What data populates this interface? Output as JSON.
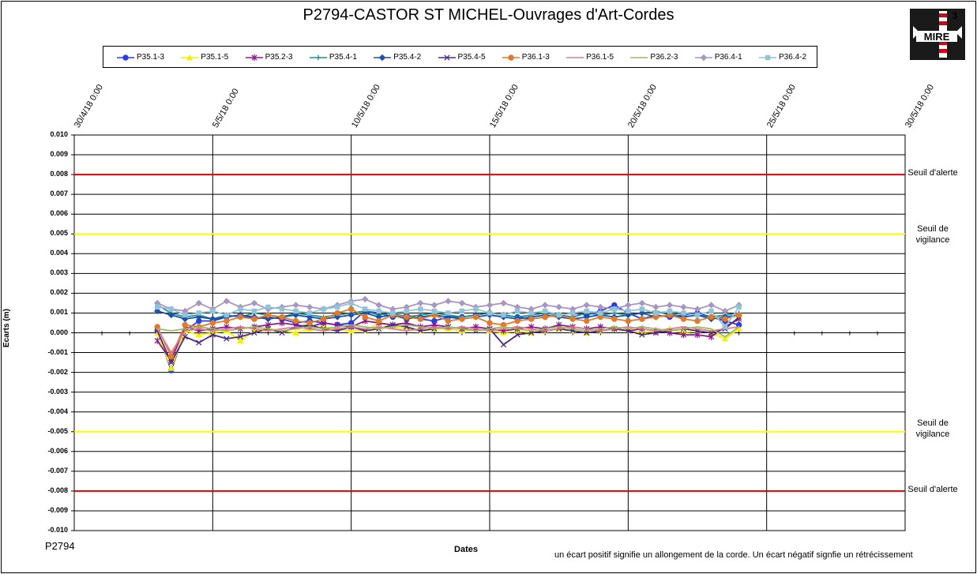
{
  "title": "P2794-CASTOR  ST MICHEL-Ouvrages  d'Art-Cordes",
  "logo": {
    "name": "mire-logo",
    "text": "MIRE",
    "digit": "3"
  },
  "footer": {
    "code": "P2794",
    "note": "un écart positif  signifie un allongement  de la corde.  Un écart négatif  signfie  un rétrécissement"
  },
  "thresholds": {
    "alert_top": "Seuil d'alerte",
    "vigilance_top": "Seuil de vigilance",
    "vigilance_bottom": "Seuil de vigilance",
    "alert_bottom": "Seuil d'alerte"
  },
  "chart_data": {
    "type": "line",
    "title": "P2794-CASTOR  ST MICHEL-Ouvrages  d'Art-Cordes",
    "xlabel": "Dates",
    "ylabel": "Ecarts (m)",
    "x_ticks": [
      "30/4/18 0:00",
      "5/5/18 0:00",
      "10/5/18 0:00",
      "15/5/18 0:00",
      "20/5/18 0:00",
      "25/5/18 0:00",
      "30/5/18 0:00"
    ],
    "xlim": [
      "2018-04-30",
      "2018-05-30"
    ],
    "ylim": [
      -0.01,
      0.01
    ],
    "y_ticks": [
      "0.010",
      "0.009",
      "0.008",
      "0.007",
      "0.006",
      "0.005",
      "0.004",
      "0.003",
      "0.002",
      "0.001",
      "0.000",
      "-0.001",
      "-0.002",
      "-0.003",
      "-0.004",
      "-0.005",
      "-0.006",
      "-0.007",
      "-0.008",
      "-0.009",
      "-0.010"
    ],
    "grid": true,
    "legend_position": "top",
    "threshold_lines": [
      {
        "value": 0.008,
        "color": "#dd0000"
      },
      {
        "value": 0.005,
        "color": "#ffff00"
      },
      {
        "value": -0.005,
        "color": "#ffff00"
      },
      {
        "value": -0.008,
        "color": "#dd0000"
      }
    ],
    "x_dates": [
      "2018-05-03",
      "2018-05-03 12:00",
      "2018-05-04",
      "2018-05-04 12:00",
      "2018-05-05",
      "2018-05-05 12:00",
      "2018-05-06",
      "2018-05-06 12:00",
      "2018-05-07",
      "2018-05-07 12:00",
      "2018-05-08",
      "2018-05-08 12:00",
      "2018-05-09",
      "2018-05-09 12:00",
      "2018-05-10",
      "2018-05-10 12:00",
      "2018-05-11",
      "2018-05-11 12:00",
      "2018-05-12",
      "2018-05-12 12:00",
      "2018-05-13",
      "2018-05-13 12:00",
      "2018-05-14",
      "2018-05-14 12:00",
      "2018-05-15",
      "2018-05-15 12:00",
      "2018-05-16",
      "2018-05-16 12:00",
      "2018-05-17",
      "2018-05-17 12:00",
      "2018-05-18",
      "2018-05-18 12:00",
      "2018-05-19",
      "2018-05-19 12:00",
      "2018-05-20",
      "2018-05-20 12:00",
      "2018-05-21",
      "2018-05-21 12:00",
      "2018-05-22",
      "2018-05-22 12:00",
      "2018-05-23",
      "2018-05-23 12:00",
      "2018-05-24"
    ],
    "series": [
      {
        "name": "P35.1-3",
        "color": "#2a3fe0",
        "marker": "circle",
        "values": [
          0.0001,
          -0.0019,
          0.0001,
          0.0006,
          0.0006,
          0.0008,
          0.0009,
          0.0007,
          0.0008,
          0.0007,
          0.0005,
          0.0006,
          0.0005,
          0.0004,
          0.0005,
          0.0011,
          0.001,
          0.0008,
          0.0009,
          0.0007,
          0.0006,
          0.0008,
          0.0008,
          0.0009,
          0.001,
          0.0009,
          0.0008,
          0.0007,
          0.0008,
          0.0009,
          0.001,
          0.0009,
          0.0011,
          0.0014,
          0.001,
          0.0007,
          0.0009,
          0.0008,
          0.0009,
          0.001,
          0.0008,
          0.0006,
          0.0004
        ]
      },
      {
        "name": "P35.1-5",
        "color": "#f2f200",
        "marker": "triangle",
        "values": [
          0.0,
          -0.0018,
          0.0001,
          -0.0001,
          0.0,
          0.0001,
          -0.0004,
          0.0001,
          0.0002,
          0.0001,
          0.0,
          0.0002,
          0.0003,
          0.0002,
          0.0001,
          0.0001,
          0.0005,
          0.0003,
          0.0002,
          0.0001,
          0.0002,
          0.0002,
          0.0001,
          0.0002,
          0.0001,
          0.0,
          0.0001,
          0.0,
          0.0001,
          0.0002,
          0.0001,
          0.0,
          0.0001,
          0.0002,
          0.0001,
          0.0,
          0.0001,
          0.0002,
          0.0,
          0.0001,
          0.0,
          -0.0003,
          0.0002
        ]
      },
      {
        "name": "P35.2-3",
        "color": "#8a1a8a",
        "marker": "star",
        "values": [
          -0.0004,
          -0.0014,
          0.0003,
          0.0001,
          0.0002,
          0.0003,
          0.0002,
          0.0003,
          0.0004,
          0.0005,
          0.0004,
          0.0003,
          0.0005,
          0.0004,
          0.0003,
          0.0006,
          0.0005,
          0.0004,
          0.0005,
          0.0003,
          0.0004,
          0.0003,
          0.0002,
          0.0003,
          0.0002,
          0.0001,
          0.0002,
          0.0003,
          0.0002,
          0.0004,
          0.0003,
          0.0002,
          0.0003,
          0.0002,
          0.0001,
          0.0002,
          0.0001,
          0.0,
          -0.0001,
          -0.0001,
          -0.0002,
          0.0003,
          0.0007
        ]
      },
      {
        "name": "P35.4-1",
        "color": "#1e8e8e",
        "marker": "plus",
        "values": [
          0.0014,
          0.001,
          0.0008,
          0.0009,
          0.0007,
          0.0009,
          0.0008,
          0.001,
          0.0009,
          0.0008,
          0.001,
          0.0009,
          0.0008,
          0.0009,
          0.001,
          0.0011,
          0.0009,
          0.001,
          0.0008,
          0.0009,
          0.001,
          0.0009,
          0.0008,
          0.0009,
          0.001,
          0.0009,
          0.0008,
          0.0009,
          0.001,
          0.0009,
          0.0008,
          0.001,
          0.0009,
          0.001,
          0.0009,
          0.001,
          0.0011,
          0.0009,
          0.001,
          0.0009,
          0.0008,
          0.0009,
          0.001
        ]
      },
      {
        "name": "P35.4-2",
        "color": "#1f4fa8",
        "marker": "diamond",
        "values": [
          0.0011,
          0.0009,
          0.0007,
          0.0008,
          0.0007,
          0.0008,
          0.0009,
          0.0008,
          0.0007,
          0.0008,
          0.0009,
          0.0008,
          0.0007,
          0.0008,
          0.0009,
          0.001,
          0.0008,
          0.0009,
          0.0007,
          0.0008,
          0.0009,
          0.0008,
          0.0007,
          0.0008,
          0.0009,
          0.0008,
          0.0007,
          0.0008,
          0.0009,
          0.0008,
          0.0007,
          0.0008,
          0.0009,
          0.0008,
          0.0009,
          0.001,
          0.0008,
          0.0009,
          0.0008,
          0.0009,
          0.0007,
          0.0008,
          0.0009
        ]
      },
      {
        "name": "P35.4-5",
        "color": "#4a2a8a",
        "marker": "x",
        "values": [
          0.0001,
          -0.0015,
          -0.0002,
          -0.0005,
          -0.0001,
          -0.0003,
          -0.0002,
          0.0,
          0.0002,
          0.0,
          0.0003,
          0.0004,
          0.0002,
          0.0001,
          0.0003,
          0.0001,
          0.0002,
          0.0004,
          0.0003,
          0.0001,
          0.0002,
          0.0003,
          0.0002,
          0.0001,
          0.0002,
          -0.0006,
          -0.0001,
          0.0,
          0.0001,
          0.0002,
          0.0001,
          0.0,
          0.0001,
          0.0002,
          0.0001,
          -0.0001,
          0.0,
          0.0001,
          0.0002,
          0.0001,
          0.0,
          0.0002,
          0.0008
        ]
      },
      {
        "name": "P36.1-3",
        "color": "#e07b2e",
        "marker": "circle",
        "values": [
          0.0003,
          -0.0012,
          0.0004,
          0.0003,
          0.0005,
          0.0006,
          0.0008,
          0.0007,
          0.0009,
          0.0008,
          0.0006,
          0.0005,
          0.0007,
          0.001,
          0.0012,
          0.0008,
          0.0006,
          0.0009,
          0.0008,
          0.0007,
          0.0009,
          0.0006,
          0.0007,
          0.0008,
          0.0005,
          0.0004,
          0.0006,
          0.0007,
          0.0008,
          0.0009,
          0.0007,
          0.0006,
          0.0008,
          0.0007,
          0.0006,
          0.0007,
          0.0008,
          0.0009,
          0.0007,
          0.0006,
          0.0008,
          0.0007,
          0.0009
        ]
      },
      {
        "name": "P36.1-5",
        "color": "#e07a90",
        "marker": "none",
        "values": [
          0.0002,
          -0.001,
          0.0001,
          0.0002,
          0.0001,
          0.0002,
          0.0003,
          0.0002,
          0.0001,
          0.0002,
          0.0003,
          0.0002,
          0.0001,
          0.0002,
          0.0003,
          0.0002,
          0.0003,
          0.0002,
          0.0001,
          0.0002,
          0.0003,
          0.0002,
          0.0003,
          0.0002,
          0.0001,
          0.0002,
          0.0003,
          0.0002,
          0.0001,
          0.0002,
          0.0003,
          0.0002,
          0.0001,
          0.0002,
          0.0003,
          0.0002,
          0.0001,
          0.0002,
          0.0003,
          0.0002,
          0.0001,
          0.0002,
          0.0003
        ]
      },
      {
        "name": "P36.2-3",
        "color": "#9dbb5f",
        "marker": "none",
        "values": [
          0.0002,
          0.0001,
          0.0002,
          0.0003,
          0.0002,
          0.0001,
          0.0002,
          0.0003,
          0.0002,
          0.0001,
          0.0002,
          0.0003,
          0.0002,
          0.0003,
          0.0004,
          0.0003,
          0.0002,
          0.0003,
          0.0004,
          0.0003,
          0.0002,
          0.0003,
          0.0002,
          0.0001,
          0.0002,
          0.0003,
          0.0002,
          0.0001,
          0.0002,
          0.0003,
          0.0002,
          0.0001,
          0.0002,
          0.0003,
          0.0002,
          0.0003,
          0.0002,
          0.0001,
          0.0002,
          0.0003,
          0.0002,
          -0.0002,
          0.0003
        ]
      },
      {
        "name": "P36.4-1",
        "color": "#a895c4",
        "marker": "diamond",
        "values": [
          0.0015,
          0.0012,
          0.0011,
          0.0015,
          0.0012,
          0.0016,
          0.0013,
          0.0015,
          0.0012,
          0.0013,
          0.0014,
          0.0013,
          0.0012,
          0.0014,
          0.0016,
          0.0017,
          0.0014,
          0.0012,
          0.0013,
          0.0015,
          0.0014,
          0.0016,
          0.0015,
          0.0013,
          0.0014,
          0.0015,
          0.0013,
          0.0012,
          0.0014,
          0.0013,
          0.0012,
          0.0014,
          0.0013,
          0.0012,
          0.0014,
          0.0015,
          0.0013,
          0.0014,
          0.0013,
          0.0012,
          0.0014,
          0.0011,
          0.0014
        ]
      },
      {
        "name": "P36.4-2",
        "color": "#8fc4d8",
        "marker": "square",
        "values": [
          0.0013,
          0.0012,
          0.0009,
          0.001,
          0.0011,
          0.0009,
          0.0012,
          0.0011,
          0.0013,
          0.0012,
          0.0011,
          0.001,
          0.0012,
          0.0013,
          0.0015,
          0.0012,
          0.0011,
          0.001,
          0.0011,
          0.0012,
          0.0011,
          0.001,
          0.0011,
          0.0012,
          0.001,
          0.0009,
          0.0011,
          0.001,
          0.0011,
          0.0009,
          0.001,
          0.0011,
          0.001,
          0.0012,
          0.0011,
          0.0012,
          0.001,
          0.0011,
          0.001,
          0.0009,
          0.0011,
          0.0003,
          0.0013
        ]
      }
    ]
  }
}
